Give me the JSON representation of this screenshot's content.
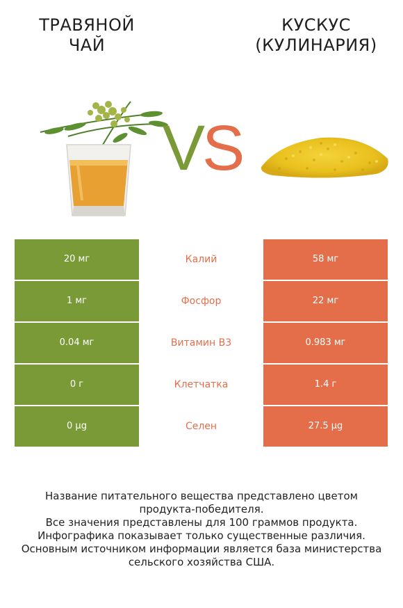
{
  "left_product": {
    "title_line1": "ТРАВЯНОЙ",
    "title_line2": "ЧАЙ"
  },
  "right_product": {
    "title_line1": "КУСКУС",
    "title_line2": "(КУЛИНАРИЯ)"
  },
  "vs": {
    "v": "V",
    "s": "S"
  },
  "colors": {
    "left": "#7a9a37",
    "right": "#e46e4a"
  },
  "rows": [
    {
      "left": "20 мг",
      "name": "Калий",
      "right": "58 мг"
    },
    {
      "left": "1 мг",
      "name": "Фосфор",
      "right": "22 мг"
    },
    {
      "left": "0.04 мг",
      "name": "Витамин B3",
      "right": "0.983 мг"
    },
    {
      "left": "0 г",
      "name": "Клетчатка",
      "right": "1.4 г"
    },
    {
      "left": "0 µg",
      "name": "Селен",
      "right": "27.5 µg"
    }
  ],
  "footer": {
    "line1": "Название питательного вещества представлено цветом",
    "line2": "продукта-победителя.",
    "line3": "Все значения представлены для 100 граммов продукта.",
    "line4": "Инфографика показывает только существенные различия.",
    "line5": "Основным источником информации является база министерства",
    "line6": "сельского хозяйства США."
  }
}
